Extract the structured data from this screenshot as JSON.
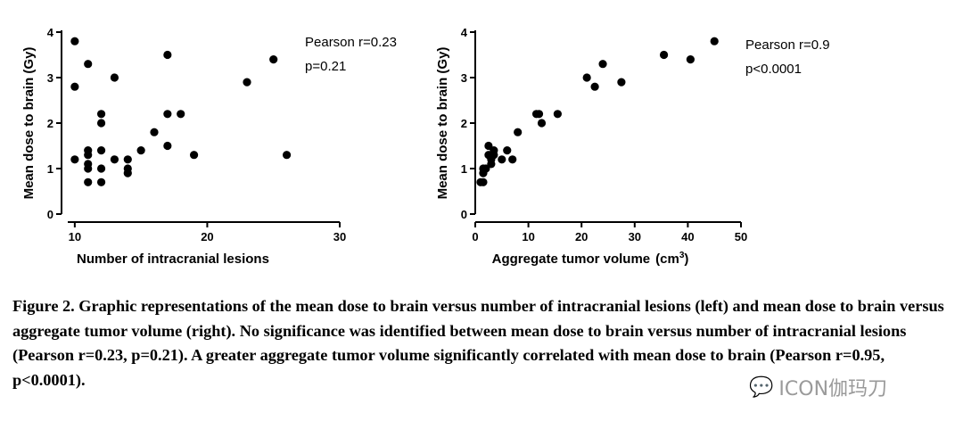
{
  "chart_data": [
    {
      "type": "scatter",
      "xlabel": "Number of intracranial lesions",
      "ylabel": "Mean dose to brain (Gy)",
      "xlim": [
        9,
        30
      ],
      "ylim": [
        0,
        4
      ],
      "xticks": [
        10,
        20,
        30
      ],
      "yticks": [
        0,
        1,
        2,
        3,
        4
      ],
      "annotations": [
        "Pearson r=0.23",
        "p=0.21"
      ],
      "grid": false,
      "points": [
        [
          10,
          3.8
        ],
        [
          10,
          2.8
        ],
        [
          10,
          1.2
        ],
        [
          11,
          3.3
        ],
        [
          11,
          1.4
        ],
        [
          11,
          1.3
        ],
        [
          11,
          1.1
        ],
        [
          11,
          1.0
        ],
        [
          11,
          0.7
        ],
        [
          12,
          2.2
        ],
        [
          12,
          2.0
        ],
        [
          12,
          1.4
        ],
        [
          12,
          1.0
        ],
        [
          12,
          0.7
        ],
        [
          13,
          3.0
        ],
        [
          13,
          1.2
        ],
        [
          14,
          1.2
        ],
        [
          14,
          1.0
        ],
        [
          14,
          0.9
        ],
        [
          15,
          1.4
        ],
        [
          16,
          1.8
        ],
        [
          17,
          3.5
        ],
        [
          17,
          2.2
        ],
        [
          17,
          1.5
        ],
        [
          18,
          2.2
        ],
        [
          19,
          1.3
        ],
        [
          23,
          2.9
        ],
        [
          25,
          3.4
        ],
        [
          26,
          1.3
        ]
      ]
    },
    {
      "type": "scatter",
      "xlabel": "Aggregate tumor volume",
      "xlabel_unit": "(cm",
      "xlabel_unit_sup": "3",
      "xlabel_unit_close": ")",
      "ylabel": "Mean dose to brain (Gy)",
      "xlim": [
        0,
        50
      ],
      "ylim": [
        0,
        4
      ],
      "xticks": [
        0,
        10,
        20,
        30,
        40,
        50
      ],
      "yticks": [
        0,
        1,
        2,
        3,
        4
      ],
      "annotations": [
        "Pearson r=0.95",
        "p<0.0001"
      ],
      "grid": false,
      "points": [
        [
          45.0,
          3.8
        ],
        [
          35.5,
          3.5
        ],
        [
          40.5,
          3.4
        ],
        [
          24.0,
          3.3
        ],
        [
          21.0,
          3.0
        ],
        [
          27.5,
          2.9
        ],
        [
          22.5,
          2.8
        ],
        [
          11.5,
          2.2
        ],
        [
          12.0,
          2.2
        ],
        [
          15.5,
          2.2
        ],
        [
          12.5,
          2.0
        ],
        [
          8.0,
          1.8
        ],
        [
          2.5,
          1.5
        ],
        [
          3.5,
          1.4
        ],
        [
          6.0,
          1.4
        ],
        [
          2.5,
          1.3
        ],
        [
          3.5,
          1.3
        ],
        [
          3.0,
          1.2
        ],
        [
          5.0,
          1.2
        ],
        [
          7.0,
          1.2
        ],
        [
          3.0,
          1.1
        ],
        [
          1.5,
          1.0
        ],
        [
          2.0,
          1.0
        ],
        [
          1.5,
          0.9
        ],
        [
          1.0,
          0.7
        ],
        [
          1.5,
          0.7
        ]
      ]
    }
  ],
  "caption": {
    "lead": "Figure 2.",
    "text": " Graphic representations of the mean dose to brain versus number of intracranial lesions (left) and mean dose to brain versus aggregate tumor volume (right). No significance was identified between mean dose to brain versus number of intracranial lesions (Pearson r=0.23, p=0.21). A greater aggregate tumor volume significantly correlated with mean dose to brain (Pearson r=0.95, p<0.0001)."
  },
  "watermark": {
    "icon": "wechat-icon",
    "text": "ICON伽玛刀"
  }
}
